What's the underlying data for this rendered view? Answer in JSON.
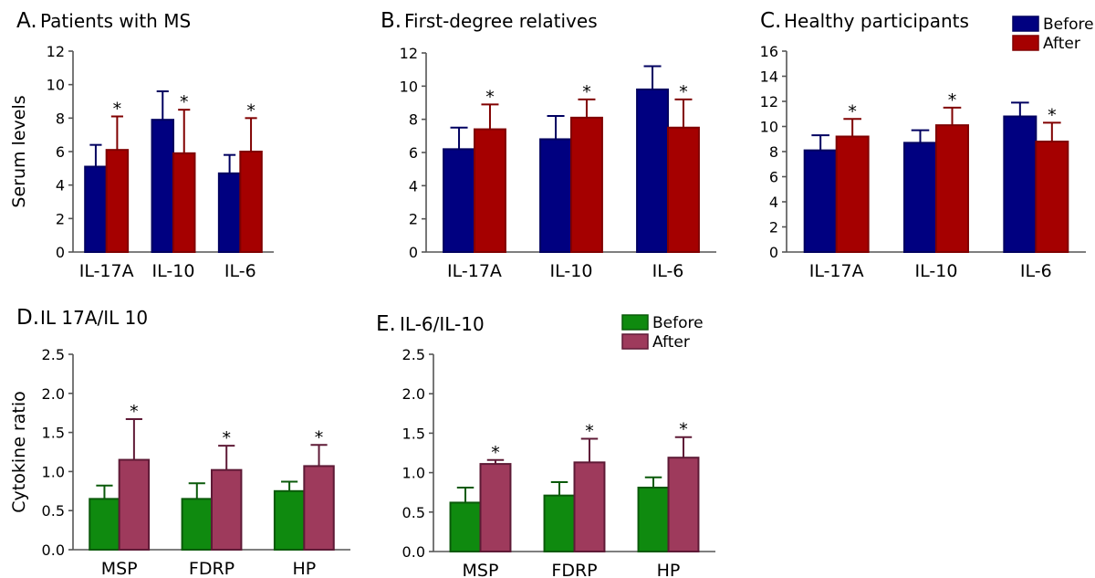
{
  "chart_data": [
    {
      "type": "bar",
      "panel": "A.",
      "title": "Patients with MS",
      "xlabel": "",
      "ylabel": "Serum levels",
      "ylim": [
        0,
        12
      ],
      "yticks": [
        "0",
        "2",
        "4",
        "6",
        "8",
        "10",
        "12"
      ],
      "categories": [
        "IL-17A",
        "IL-10",
        "IL-6"
      ],
      "series": [
        {
          "name": "Before",
          "color": "#000080",
          "values": [
            5.1,
            7.9,
            4.7
          ],
          "errors": [
            1.3,
            1.7,
            1.1
          ]
        },
        {
          "name": "After",
          "color": "#a50000",
          "values": [
            6.1,
            5.9,
            6.0
          ],
          "errors": [
            2.0,
            2.6,
            2.0
          ]
        }
      ],
      "significance": [
        [
          "",
          "*"
        ],
        [
          "",
          "*"
        ],
        [
          "",
          "*"
        ]
      ]
    },
    {
      "type": "bar",
      "panel": "B.",
      "title": "First-degree relatives",
      "xlabel": "",
      "ylabel": "",
      "ylim": [
        0,
        12
      ],
      "yticks": [
        "0",
        "2",
        "4",
        "6",
        "8",
        "10",
        "12"
      ],
      "categories": [
        "IL-17A",
        "IL-10",
        "IL-6"
      ],
      "series": [
        {
          "name": "Before",
          "color": "#000080",
          "values": [
            6.2,
            6.8,
            9.8
          ],
          "errors": [
            1.3,
            1.4,
            1.4
          ]
        },
        {
          "name": "After",
          "color": "#a50000",
          "values": [
            7.4,
            8.1,
            7.5
          ],
          "errors": [
            1.5,
            1.1,
            1.7
          ]
        }
      ],
      "significance": [
        [
          "",
          "*"
        ],
        [
          "",
          "*"
        ],
        [
          "",
          "*"
        ]
      ]
    },
    {
      "type": "bar",
      "panel": "C.",
      "title": "Healthy participants",
      "xlabel": "",
      "ylabel": "",
      "ylim": [
        0,
        16
      ],
      "yticks": [
        "0",
        "2",
        "4",
        "6",
        "8",
        "10",
        "12",
        "14",
        "16"
      ],
      "categories": [
        "IL-17A",
        "IL-10",
        "IL-6"
      ],
      "series": [
        {
          "name": "Before",
          "color": "#000080",
          "values": [
            8.1,
            8.7,
            10.8
          ],
          "errors": [
            1.2,
            1.0,
            1.1
          ]
        },
        {
          "name": "After",
          "color": "#a50000",
          "values": [
            9.2,
            10.1,
            8.8
          ],
          "errors": [
            1.4,
            1.4,
            1.5
          ]
        }
      ],
      "significance": [
        [
          "",
          "*"
        ],
        [
          "",
          "*"
        ],
        [
          "",
          "*"
        ]
      ],
      "legend": {
        "placement": "top-right",
        "entries": [
          "Before",
          "After"
        ]
      }
    },
    {
      "type": "bar",
      "panel": "D.",
      "title": "IL 17A/IL 10",
      "xlabel": "",
      "ylabel": "Cytokine ratio",
      "ylim": [
        0,
        2.5
      ],
      "yticks": [
        "0.0",
        "0.5",
        "1.0",
        "1.5",
        "2.0",
        "2.5"
      ],
      "categories": [
        "MSP",
        "FDRP",
        "HP"
      ],
      "series": [
        {
          "name": "Before",
          "color": "#0f8a0f",
          "values": [
            0.65,
            0.65,
            0.75
          ],
          "errors": [
            0.17,
            0.2,
            0.12
          ]
        },
        {
          "name": "After",
          "color": "#9e3a5c",
          "values": [
            1.15,
            1.02,
            1.07
          ],
          "errors": [
            0.52,
            0.31,
            0.27
          ]
        }
      ],
      "significance": [
        [
          "",
          "*"
        ],
        [
          "",
          "*"
        ],
        [
          "",
          "*"
        ]
      ]
    },
    {
      "type": "bar",
      "panel": "E.",
      "title": "IL-6/IL-10",
      "xlabel": "",
      "ylabel": "",
      "ylim": [
        0,
        2.5
      ],
      "yticks": [
        "0.0",
        "0.5",
        "1.0",
        "1.5",
        "2.0",
        "2.5"
      ],
      "categories": [
        "MSP",
        "FDRP",
        "HP"
      ],
      "series": [
        {
          "name": "Before",
          "color": "#0f8a0f",
          "values": [
            0.62,
            0.71,
            0.81
          ],
          "errors": [
            0.19,
            0.17,
            0.13
          ]
        },
        {
          "name": "After",
          "color": "#9e3a5c",
          "values": [
            1.11,
            1.13,
            1.19
          ],
          "errors": [
            0.05,
            0.3,
            0.26
          ]
        }
      ],
      "significance": [
        [
          "",
          "*"
        ],
        [
          "",
          "*"
        ],
        [
          "",
          "*"
        ]
      ],
      "legend": {
        "placement": "top-right",
        "entries": [
          "Before",
          "After"
        ]
      }
    }
  ]
}
